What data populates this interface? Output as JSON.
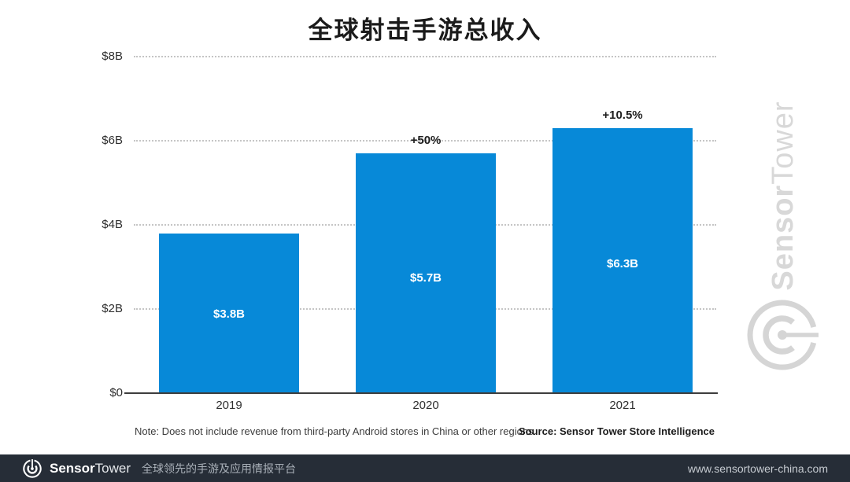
{
  "title": "全球射击手游总收入",
  "chart_data": {
    "type": "bar",
    "title": "全球射击手游总收入",
    "categories": [
      "2019",
      "2020",
      "2021"
    ],
    "values": [
      3.8,
      5.7,
      6.3
    ],
    "bar_labels": [
      "$3.8B",
      "$5.7B",
      "$6.3B"
    ],
    "growth_labels": [
      "",
      "+50%",
      "+10.5%"
    ],
    "yticks": {
      "values": [
        0,
        2,
        4,
        6,
        8
      ],
      "labels": [
        "$0",
        "$2B",
        "$4B",
        "$6B",
        "$8B"
      ]
    },
    "ylim": [
      0,
      8
    ],
    "grid": "horizontal-dotted",
    "legend": "none",
    "bar_color": "#0789d8",
    "bar_label_color": "#ffffff"
  },
  "note": "Note: Does not include revenue from third-party Android stores in China or other regions.",
  "source": "Source: Sensor Tower Store Intelligence",
  "watermark": {
    "brand_bold": "Sensor",
    "brand_light": "Tower",
    "logo_icon": "sensor-tower-radar-logo",
    "color": "#d8d8d8"
  },
  "footer": {
    "logo_icon": "sensor-tower-logo",
    "brand_bold": "Sensor",
    "brand_light": "Tower",
    "tagline": "全球领先的手游及应用情报平台",
    "url": "www.sensortower-china.com",
    "bg_color": "#262d37"
  }
}
